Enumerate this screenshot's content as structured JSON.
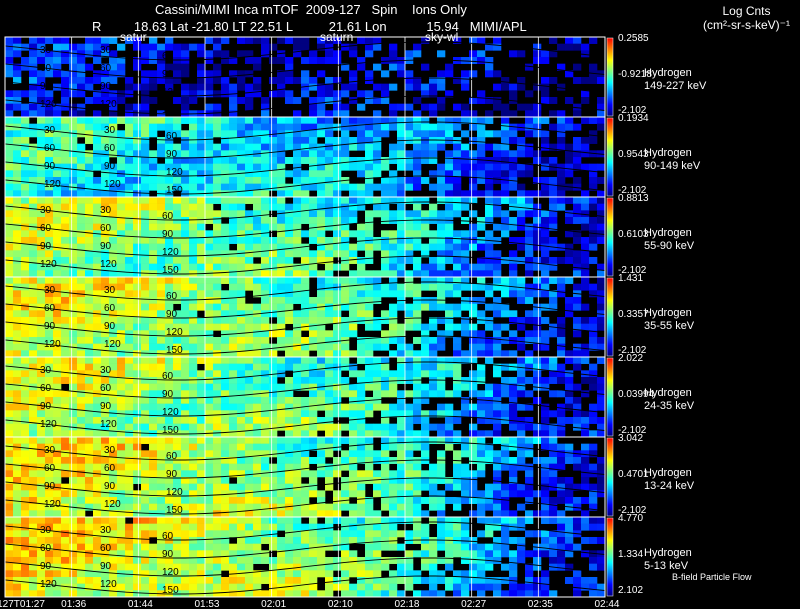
{
  "header": {
    "title": "Cassini/MIMI Inca mTOF  2009-127   Spin    Ions Only",
    "line2": "R         18.63 Lat -21.80 LT 22.51 L          21.61 Lon           15.94   MIMI/APL",
    "units_line1": "Log Cnts",
    "units_line2": "(cm²-sr-s-keV)⁻¹"
  },
  "markers": [
    {
      "label": "satur"
    },
    {
      "label": "saturn"
    },
    {
      "label": "sky-wl"
    }
  ],
  "x_ticks": [
    "127T01:27",
    "01:36",
    "01:44",
    "01:53",
    "02:01",
    "02:10",
    "02:18",
    "02:27",
    "02:35",
    "02:44"
  ],
  "flow_label": "B-field Particle Flow",
  "colors": {
    "scale": [
      "#000080",
      "#0000ff",
      "#0080ff",
      "#00ffff",
      "#80ff80",
      "#ffff00",
      "#ff8000",
      "#ff0000"
    ]
  },
  "chart_data": {
    "type": "heatmap",
    "title": "Cassini/MIMI Inca mTOF  2009-127   Spin    Ions Only",
    "xlabel": "",
    "ylabel": "",
    "x_categories": [
      "127T01:27",
      "01:36",
      "01:44",
      "01:53",
      "02:01",
      "02:10",
      "02:18",
      "02:27",
      "02:35",
      "02:44"
    ],
    "contour_labels": [
      "30",
      "60",
      "90",
      "120",
      "150"
    ],
    "panels": [
      {
        "species": "Hydrogen",
        "energy": "149-227 keV",
        "cb_max": "0.2585",
        "cb_mid": "-0.9218",
        "cb_min": "-2.102",
        "intensity": 0.12
      },
      {
        "species": "Hydrogen",
        "energy": "90-149 keV",
        "cb_max": "0.1934",
        "cb_mid": "0.9543",
        "cb_min": "-2.102",
        "intensity": 0.45
      },
      {
        "species": "Hydrogen",
        "energy": "55-90 keV",
        "cb_max": "0.8813",
        "cb_mid": "0.6103",
        "cb_min": "-2.102",
        "intensity": 0.6
      },
      {
        "species": "Hydrogen",
        "energy": "35-55 keV",
        "cb_max": "1.431",
        "cb_mid": "0.3357",
        "cb_min": "-2.102",
        "intensity": 0.65
      },
      {
        "species": "Hydrogen",
        "energy": "24-35 keV",
        "cb_max": "2.022",
        "cb_mid": "0.03994",
        "cb_min": "-2.102",
        "intensity": 0.62
      },
      {
        "species": "Hydrogen",
        "energy": "13-24 keV",
        "cb_max": "3.042",
        "cb_mid": "0.4701",
        "cb_min": "-2.102",
        "intensity": 0.68
      },
      {
        "species": "Hydrogen",
        "energy": "5-13 keV",
        "cb_max": "4.770",
        "cb_mid": "1.334",
        "cb_min": "2.102",
        "intensity": 0.7
      }
    ]
  }
}
